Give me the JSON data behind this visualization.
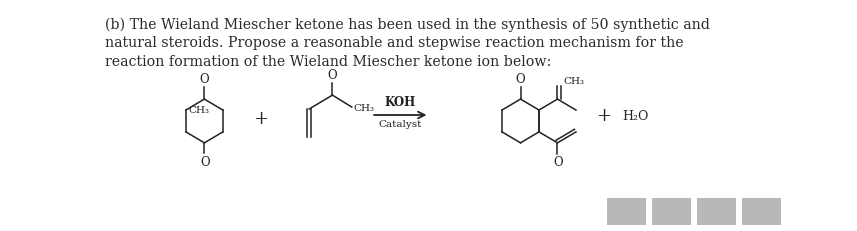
{
  "title_lines": [
    "(b) The Wieland Miescher ketone has been used in the synthesis of 50 synthetic and",
    "natural steroids. Propose a reasonable and stepwise reaction mechanism for the",
    "reaction formation of the Wieland Miescher ketone ion below:"
  ],
  "background_color": "#ffffff",
  "text_color": "#2a2a2a",
  "font_size_title": 10.2,
  "blurred_box_color": "#b8b8b8",
  "fig_width": 8.57,
  "fig_height": 2.32,
  "dpi": 100
}
